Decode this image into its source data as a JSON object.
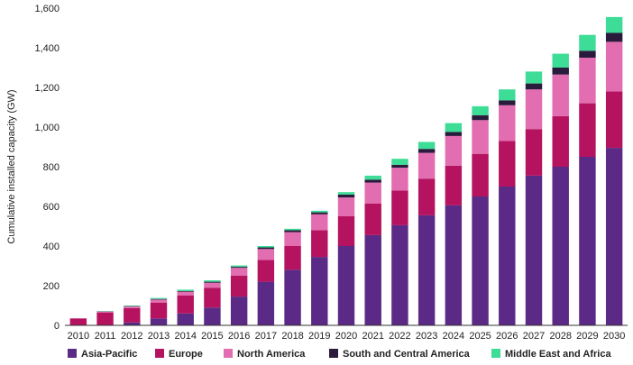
{
  "chart_data": {
    "type": "bar",
    "stacked": true,
    "categories": [
      "2010",
      "2011",
      "2012",
      "2013",
      "2014",
      "2015",
      "2016",
      "2017",
      "2018",
      "2019",
      "2020",
      "2021",
      "2022",
      "2023",
      "2024",
      "2025",
      "2026",
      "2027",
      "2028",
      "2029",
      "2030"
    ],
    "series": [
      {
        "name": "Asia-Pacific",
        "color": "#5b2a86",
        "values": [
          0,
          0,
          15,
          35,
          60,
          90,
          145,
          220,
          280,
          345,
          400,
          455,
          505,
          555,
          605,
          650,
          700,
          755,
          800,
          850,
          895
        ]
      },
      {
        "name": "Europe",
        "color": "#b5135f",
        "values": [
          35,
          65,
          72,
          80,
          90,
          100,
          105,
          110,
          120,
          135,
          150,
          160,
          175,
          185,
          200,
          215,
          230,
          235,
          255,
          270,
          285
        ]
      },
      {
        "name": "North America",
        "color": "#e26db0",
        "values": [
          0,
          3,
          8,
          15,
          20,
          25,
          40,
          55,
          70,
          80,
          95,
          105,
          115,
          130,
          150,
          170,
          180,
          200,
          210,
          230,
          250
        ]
      },
      {
        "name": "South and Central America",
        "color": "#2a1b3d",
        "values": [
          0,
          2,
          2,
          3,
          3,
          5,
          5,
          8,
          10,
          10,
          15,
          15,
          15,
          20,
          20,
          25,
          25,
          30,
          35,
          35,
          45
        ]
      },
      {
        "name": "Middle East and Africa",
        "color": "#3ddc97",
        "values": [
          0,
          1,
          3,
          5,
          7,
          7,
          7,
          7,
          7,
          8,
          12,
          20,
          30,
          35,
          45,
          45,
          55,
          60,
          70,
          80,
          80
        ]
      }
    ],
    "ylabel": "Cumulative installed capacity (GW)",
    "ylim": [
      0,
      1600
    ],
    "yticks": [
      0,
      200,
      400,
      600,
      800,
      1000,
      1200,
      1400,
      1600
    ],
    "ytick_labels": [
      "0",
      "200",
      "400",
      "600",
      "800",
      "1,000",
      "1,200",
      "1,400",
      "1,600"
    ],
    "grid": false,
    "legend_position": "bottom"
  }
}
